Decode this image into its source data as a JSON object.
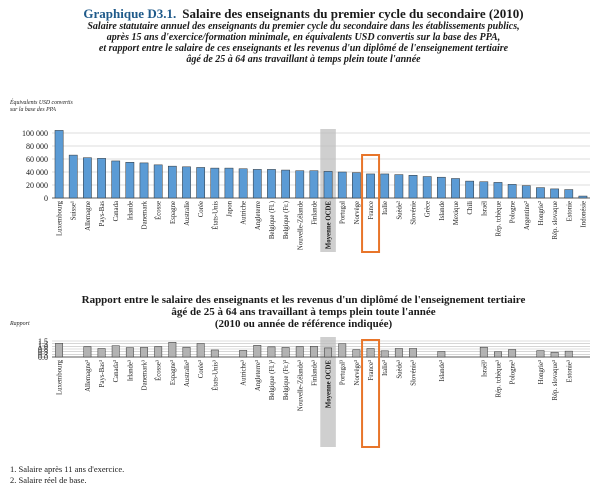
{
  "header": {
    "label": "Graphique D3.1.",
    "title": "Salaire des enseignants du premier cycle du secondaire (2010)",
    "subtitle_lines": [
      "Salaire statutaire annuel des enseignants du premier cycle du secondaire dans les établissements publics,",
      "après 15 ans d'exercice/formation minimale, en équivalents USD convertis sur la base des PPA,",
      "et rapport entre le salaire de ces enseignants et les revenus d'un diplômé de l'enseignement tertiaire",
      "âgé de 25 à 64 ans travaillant à temps plein toute l'année"
    ]
  },
  "chart2_title_lines": [
    "Rapport entre le salaire des enseignants et les revenus d'un diplômé de l'enseignement tertiaire",
    "âgé de 25 à 64 ans travaillant à temps plein toute l'année",
    "(2010 ou année de référence indiquée)"
  ],
  "footnotes": [
    "1. Salaire après 11 ans d'exercice.",
    "2. Salaire réel de base."
  ],
  "colors": {
    "bar1": "#5b9bd5",
    "bar2": "#b3b3b3",
    "oecd_highlight": "#cfcfcf",
    "france_box": "#e8752a",
    "title_label": "#1f5a8a"
  },
  "chart_data": [
    {
      "type": "bar",
      "ylabel_lines": [
        "Équivalents USD convertis",
        "sur la base des PPA"
      ],
      "ylim": [
        0,
        100000
      ],
      "yticks": [
        "0",
        "20 000",
        "40 000",
        "60 000",
        "80 000",
        "100 000"
      ],
      "yticks_values": [
        0,
        20000,
        40000,
        60000,
        80000,
        100000
      ],
      "grid": true,
      "categories": [
        "Luxembourg",
        "Suisse¹",
        "Allemagne",
        "Pays-Bas",
        "Canada",
        "Irlande",
        "Danemark",
        "Écosse",
        "Espagne",
        "Australie",
        "Corée",
        "États-Unis",
        "Japon",
        "Autriche",
        "Angleterre",
        "Belgique (Fl.)",
        "Belgique (Fr.)",
        "Nouvelle-Zélande",
        "Finlande",
        "Moyenne OCDE",
        "Portugal",
        "Norvège",
        "France",
        "Italie",
        "Suède²",
        "Slovénie",
        "Grèce",
        "Islande",
        "Mexique",
        "Chili",
        "Israël",
        "Rép. tchèque",
        "Pologne",
        "Argentine²",
        "Hongrie²",
        "Rép. slovaque",
        "Estonie",
        "Indonésie"
      ],
      "values": [
        104000,
        66000,
        62000,
        61000,
        57000,
        55000,
        54000,
        51000,
        49000,
        48000,
        47000,
        46000,
        46000,
        45000,
        44000,
        44000,
        43000,
        42000,
        42000,
        41000,
        40000,
        39000,
        37000,
        37000,
        36000,
        35000,
        33000,
        32000,
        30000,
        26000,
        25000,
        24000,
        21000,
        19000,
        16000,
        14000,
        13000,
        3000
      ],
      "highlighted": [
        "Moyenne OCDE"
      ],
      "boxed": [
        "France"
      ]
    },
    {
      "type": "bar",
      "ylabel": "Rapport",
      "ylim": [
        0,
        1.5
      ],
      "yticks": [
        "0.0",
        "0.3",
        "0.5",
        "0.8",
        "1.0",
        "1.3",
        "1.5"
      ],
      "yticks_values": [
        0,
        0.25,
        0.5,
        0.75,
        1.0,
        1.25,
        1.5
      ],
      "grid": true,
      "categories": [
        "Luxembourg",
        "Allemagne³",
        "Pays-Bas³",
        "Canada³",
        "Irlande³",
        "Danemark³",
        "Écosse³",
        "Espagne³",
        "Australie³",
        "Corée³",
        "États-Unis³",
        "Autriche³",
        "Angleterre³",
        "Belgique (Fl.)³",
        "Belgique (Fr.)³",
        "Nouvelle-Zélande³",
        "Finlande³",
        "Moyenne OCDE",
        "Portugal³",
        "Norvège³",
        "France³",
        "Italie³",
        "Suède³",
        "Slovénie³",
        "Islande³",
        "Israël³",
        "Rép. tchèque³",
        "Pologne³",
        "Hongrie³",
        "Rép. slovaque³",
        "Estonie³"
      ],
      "slots": [
        0,
        2,
        3,
        4,
        5,
        6,
        7,
        8,
        9,
        10,
        11,
        13,
        14,
        15,
        16,
        17,
        18,
        19,
        20,
        21,
        22,
        23,
        24,
        25,
        27,
        30,
        31,
        32,
        34,
        35,
        36
      ],
      "slot_count": 38,
      "values": [
        1.28,
        0.97,
        0.8,
        1.06,
        0.88,
        0.9,
        0.97,
        1.38,
        0.92,
        1.27,
        0.66,
        0.62,
        1.1,
        0.95,
        0.9,
        0.97,
        1.0,
        0.85,
        1.25,
        0.68,
        0.8,
        0.58,
        0.8,
        0.8,
        0.52,
        0.92,
        0.5,
        0.7,
        0.6,
        0.45,
        0.55
      ],
      "highlighted": [
        "Moyenne OCDE"
      ],
      "boxed": [
        "France³"
      ]
    }
  ]
}
